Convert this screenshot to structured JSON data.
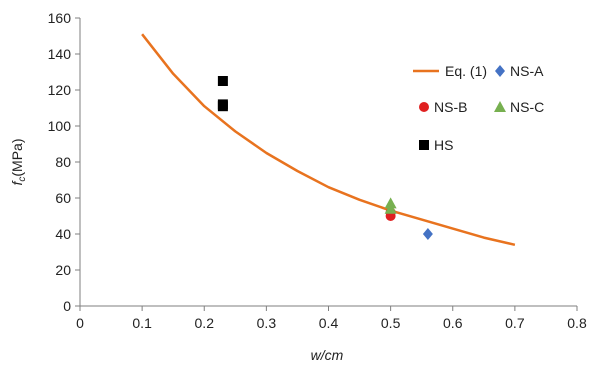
{
  "chart_data": {
    "type": "scatter",
    "xlabel": "w/cm",
    "ylabel_main": "f",
    "ylabel_sub": "c",
    "ylabel_unit": "(MPa)",
    "xlim": [
      0,
      0.8
    ],
    "ylim": [
      0,
      160
    ],
    "x_ticks": [
      "0",
      "0.1",
      "0.2",
      "0.3",
      "0.4",
      "0.5",
      "0.6",
      "0.7",
      "0.8"
    ],
    "y_ticks": [
      "0",
      "20",
      "40",
      "60",
      "80",
      "100",
      "120",
      "140",
      "160"
    ],
    "grid": false,
    "legend_position": "right-inside",
    "series": [
      {
        "name": "Eq. (1)",
        "kind": "line",
        "color": "#E8731F",
        "x": [
          0.1,
          0.15,
          0.2,
          0.25,
          0.3,
          0.35,
          0.4,
          0.45,
          0.5,
          0.55,
          0.6,
          0.65,
          0.7
        ],
        "y": [
          151,
          129,
          111,
          97,
          85,
          75,
          66,
          59,
          53,
          48,
          43,
          38,
          34
        ]
      },
      {
        "name": "NS-A",
        "kind": "scatter",
        "marker": "diamond",
        "color": "#4472C4",
        "x": [
          0.56
        ],
        "y": [
          40
        ]
      },
      {
        "name": "NS-B",
        "kind": "scatter",
        "marker": "circle",
        "color": "#E02020",
        "x": [
          0.5,
          0.5
        ],
        "y": [
          50,
          52
        ]
      },
      {
        "name": "NS-C",
        "kind": "scatter",
        "marker": "triangle",
        "color": "#77B050",
        "x": [
          0.5,
          0.5
        ],
        "y": [
          54,
          57
        ]
      },
      {
        "name": "HS",
        "kind": "scatter",
        "marker": "square",
        "color": "#000000",
        "x": [
          0.23,
          0.23,
          0.23
        ],
        "y": [
          125,
          112,
          111
        ]
      }
    ]
  }
}
